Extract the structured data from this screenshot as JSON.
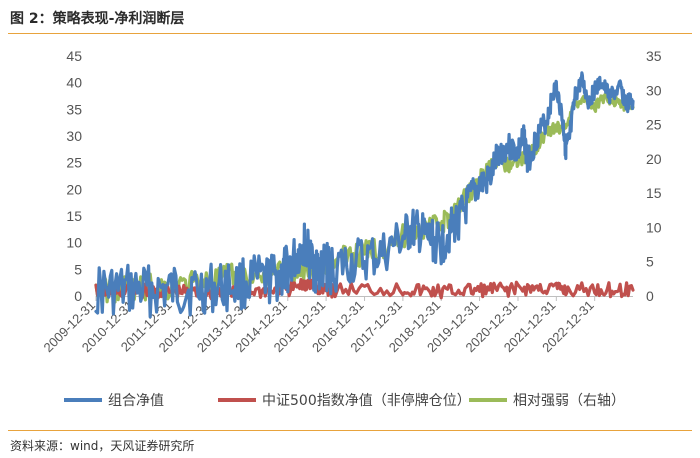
{
  "header": {
    "title": "图 2：策略表现-净利润断层"
  },
  "footer": {
    "source": "资料来源：wind，天风证券研究所"
  },
  "chart_data": {
    "type": "line",
    "grid": false,
    "legend_position": "bottom",
    "y_left": {
      "ylim": [
        0,
        45
      ],
      "ticks": [
        0,
        5,
        10,
        15,
        20,
        25,
        30,
        35,
        40,
        45
      ]
    },
    "y_right": {
      "ylim": [
        0,
        35
      ],
      "ticks": [
        0,
        5,
        10,
        15,
        20,
        25,
        30,
        35
      ]
    },
    "x_range": [
      "2009-12-31",
      "2023-12-31"
    ],
    "x_ticks": [
      "2009-12-31",
      "2010-12-31",
      "2011-12-31",
      "2012-12-31",
      "2013-12-31",
      "2014-12-31",
      "2015-12-31",
      "2016-12-31",
      "2017-12-31",
      "2018-12-31",
      "2019-12-31",
      "2020-12-31",
      "2021-12-31",
      "2022-12-31"
    ],
    "series": [
      {
        "name": "组合净值",
        "axis": "left",
        "color": "#4a7ebb",
        "points": [
          [
            "2009-12-31",
            1.0
          ],
          [
            "2010-06-30",
            1.0
          ],
          [
            "2010-12-31",
            1.1
          ],
          [
            "2011-06-30",
            1.05
          ],
          [
            "2011-12-31",
            1.0
          ],
          [
            "2012-06-30",
            1.2
          ],
          [
            "2012-12-31",
            1.4
          ],
          [
            "2013-06-30",
            2.0
          ],
          [
            "2013-12-31",
            2.6
          ],
          [
            "2014-06-30",
            3.0
          ],
          [
            "2014-10-31",
            3.8
          ],
          [
            "2014-12-31",
            5.2
          ],
          [
            "2015-03-31",
            7.5
          ],
          [
            "2015-05-31",
            9.8
          ],
          [
            "2015-06-30",
            8.5
          ],
          [
            "2015-08-31",
            5.5
          ],
          [
            "2015-10-31",
            4.6
          ],
          [
            "2015-12-31",
            5.6
          ],
          [
            "2016-01-31",
            4.8
          ],
          [
            "2016-06-30",
            6.0
          ],
          [
            "2016-12-31",
            6.8
          ],
          [
            "2017-06-30",
            8.0
          ],
          [
            "2017-12-31",
            11.0
          ],
          [
            "2018-03-31",
            12.5
          ],
          [
            "2018-06-30",
            11.5
          ],
          [
            "2018-09-30",
            10.5
          ],
          [
            "2018-12-31",
            9.5
          ],
          [
            "2019-03-31",
            12.5
          ],
          [
            "2019-06-30",
            14.5
          ],
          [
            "2019-09-30",
            18.0
          ],
          [
            "2019-12-31",
            21.0
          ],
          [
            "2020-03-31",
            21.5
          ],
          [
            "2020-06-30",
            27.0
          ],
          [
            "2020-09-30",
            28.0
          ],
          [
            "2020-12-31",
            27.0
          ],
          [
            "2021-02-28",
            30.0
          ],
          [
            "2021-03-31",
            25.0
          ],
          [
            "2021-06-30",
            30.0
          ],
          [
            "2021-09-30",
            33.0
          ],
          [
            "2021-11-30",
            38.0
          ],
          [
            "2021-12-31",
            39.5
          ],
          [
            "2022-02-28",
            33.0
          ],
          [
            "2022-03-31",
            28.0
          ],
          [
            "2022-04-30",
            28.5
          ],
          [
            "2022-06-30",
            37.5
          ],
          [
            "2022-08-31",
            40.5
          ],
          [
            "2022-10-31",
            36.5
          ],
          [
            "2022-12-31",
            38.5
          ],
          [
            "2023-02-28",
            40.0
          ],
          [
            "2023-05-31",
            37.5
          ],
          [
            "2023-08-31",
            39.0
          ],
          [
            "2023-10-31",
            36.0
          ],
          [
            "2023-12-31",
            36.5
          ]
        ]
      },
      {
        "name": "中证500指数净值（非停牌仓位）",
        "axis": "left",
        "color": "#c0504d",
        "points": [
          [
            "2009-12-31",
            1.0
          ],
          [
            "2010-06-30",
            0.8
          ],
          [
            "2010-12-31",
            1.05
          ],
          [
            "2011-06-30",
            0.9
          ],
          [
            "2011-12-31",
            0.7
          ],
          [
            "2012-06-30",
            0.75
          ],
          [
            "2012-12-31",
            0.7
          ],
          [
            "2013-06-30",
            0.85
          ],
          [
            "2013-12-31",
            0.9
          ],
          [
            "2014-06-30",
            0.95
          ],
          [
            "2014-12-31",
            1.2
          ],
          [
            "2015-05-31",
            2.0
          ],
          [
            "2015-06-30",
            2.2
          ],
          [
            "2015-09-30",
            1.3
          ],
          [
            "2015-12-31",
            1.5
          ],
          [
            "2016-02-29",
            1.1
          ],
          [
            "2016-12-31",
            1.25
          ],
          [
            "2017-12-31",
            1.2
          ],
          [
            "2018-06-30",
            1.0
          ],
          [
            "2018-12-31",
            0.8
          ],
          [
            "2019-06-30",
            1.0
          ],
          [
            "2019-12-31",
            1.1
          ],
          [
            "2020-06-30",
            1.2
          ],
          [
            "2020-12-31",
            1.35
          ],
          [
            "2021-06-30",
            1.4
          ],
          [
            "2021-12-31",
            1.45
          ],
          [
            "2022-04-30",
            1.05
          ],
          [
            "2022-12-31",
            1.2
          ],
          [
            "2023-06-30",
            1.15
          ],
          [
            "2023-12-31",
            1.1
          ]
        ]
      },
      {
        "name": "相对强弱（右轴）",
        "axis": "right",
        "color": "#9bbb59",
        "points": [
          [
            "2009-12-31",
            1.0
          ],
          [
            "2010-06-30",
            1.1
          ],
          [
            "2010-12-31",
            1.1
          ],
          [
            "2011-06-30",
            1.2
          ],
          [
            "2011-12-31",
            1.4
          ],
          [
            "2012-06-30",
            1.7
          ],
          [
            "2012-12-31",
            2.1
          ],
          [
            "2013-06-30",
            2.7
          ],
          [
            "2013-12-31",
            3.0
          ],
          [
            "2014-06-30",
            3.1
          ],
          [
            "2014-12-31",
            3.5
          ],
          [
            "2015-06-30",
            4.1
          ],
          [
            "2015-12-31",
            4.9
          ],
          [
            "2016-06-30",
            5.6
          ],
          [
            "2016-12-31",
            6.3
          ],
          [
            "2017-06-30",
            7.3
          ],
          [
            "2017-12-31",
            8.8
          ],
          [
            "2018-06-30",
            9.8
          ],
          [
            "2018-12-31",
            10.3
          ],
          [
            "2019-03-31",
            11.8
          ],
          [
            "2019-06-30",
            13.5
          ],
          [
            "2019-09-30",
            15.2
          ],
          [
            "2019-12-31",
            17.0
          ],
          [
            "2020-03-31",
            18.5
          ],
          [
            "2020-06-30",
            19.5
          ],
          [
            "2020-09-30",
            19.2
          ],
          [
            "2020-12-31",
            20.0
          ],
          [
            "2021-03-31",
            20.5
          ],
          [
            "2021-06-30",
            22.0
          ],
          [
            "2021-09-30",
            24.0
          ],
          [
            "2021-12-31",
            24.5
          ],
          [
            "2022-03-31",
            25.0
          ],
          [
            "2022-06-30",
            28.0
          ],
          [
            "2022-09-30",
            29.0
          ],
          [
            "2022-12-31",
            27.5
          ],
          [
            "2023-03-31",
            29.0
          ],
          [
            "2023-06-30",
            28.5
          ],
          [
            "2023-09-30",
            27.8
          ],
          [
            "2023-12-31",
            27.5
          ]
        ]
      }
    ]
  }
}
